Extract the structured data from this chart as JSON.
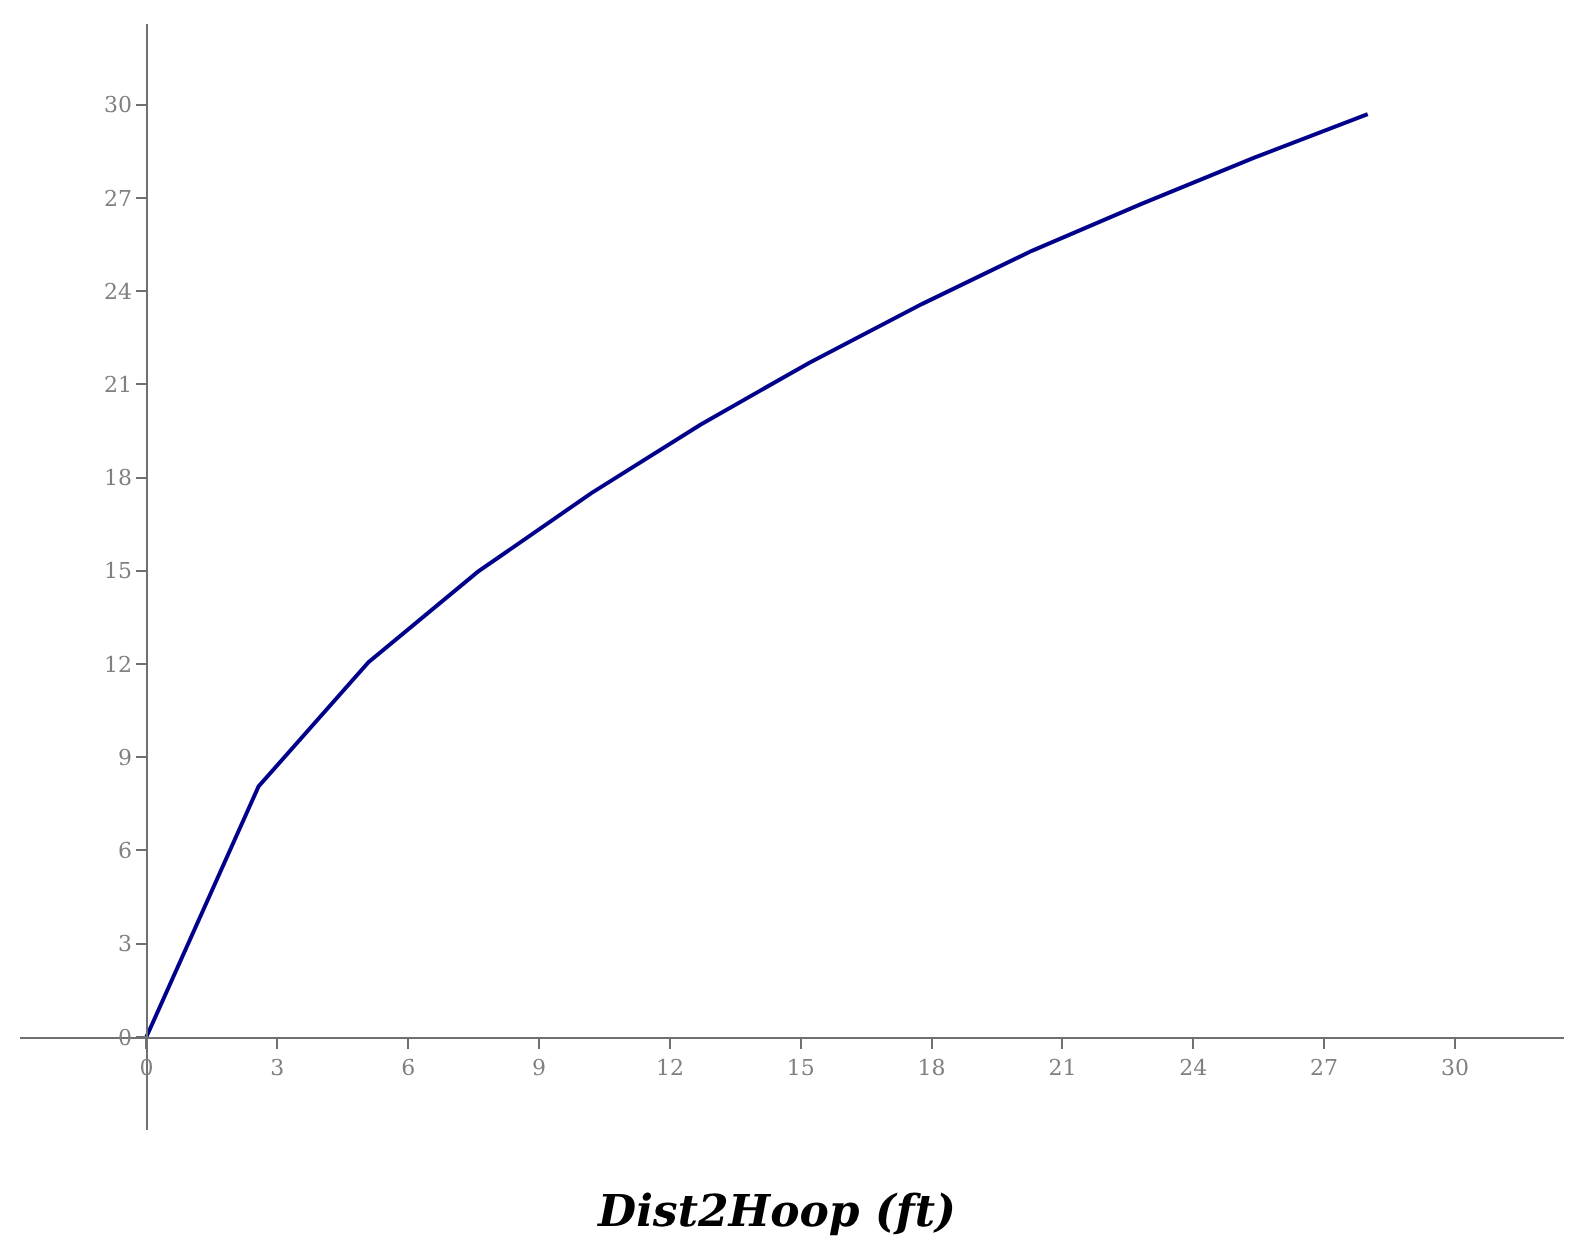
{
  "chart_data": {
    "type": "line",
    "xlabel": "Dist2Hoop (ft)",
    "x": [
      0,
      2.57,
      5.09,
      7.6,
      10.2,
      12.7,
      15.2,
      17.8,
      20.3,
      22.8,
      25.4,
      28.0
    ],
    "series": [
      {
        "color": "#00008b",
        "values": [
          0,
          8.06,
          12.06,
          14.97,
          17.5,
          19.7,
          21.7,
          23.6,
          25.3,
          26.8,
          28.3,
          29.7
        ]
      }
    ],
    "xlim": [
      -2.9,
      32.5
    ],
    "ylim": [
      -3.0,
      32.6
    ],
    "xticks": [
      0,
      3,
      6,
      9,
      12,
      15,
      18,
      21,
      24,
      27,
      30
    ],
    "yticks": [
      0,
      3,
      6,
      9,
      12,
      15,
      18,
      21,
      24,
      27,
      30
    ],
    "marker": "none",
    "line_style": "solid"
  }
}
